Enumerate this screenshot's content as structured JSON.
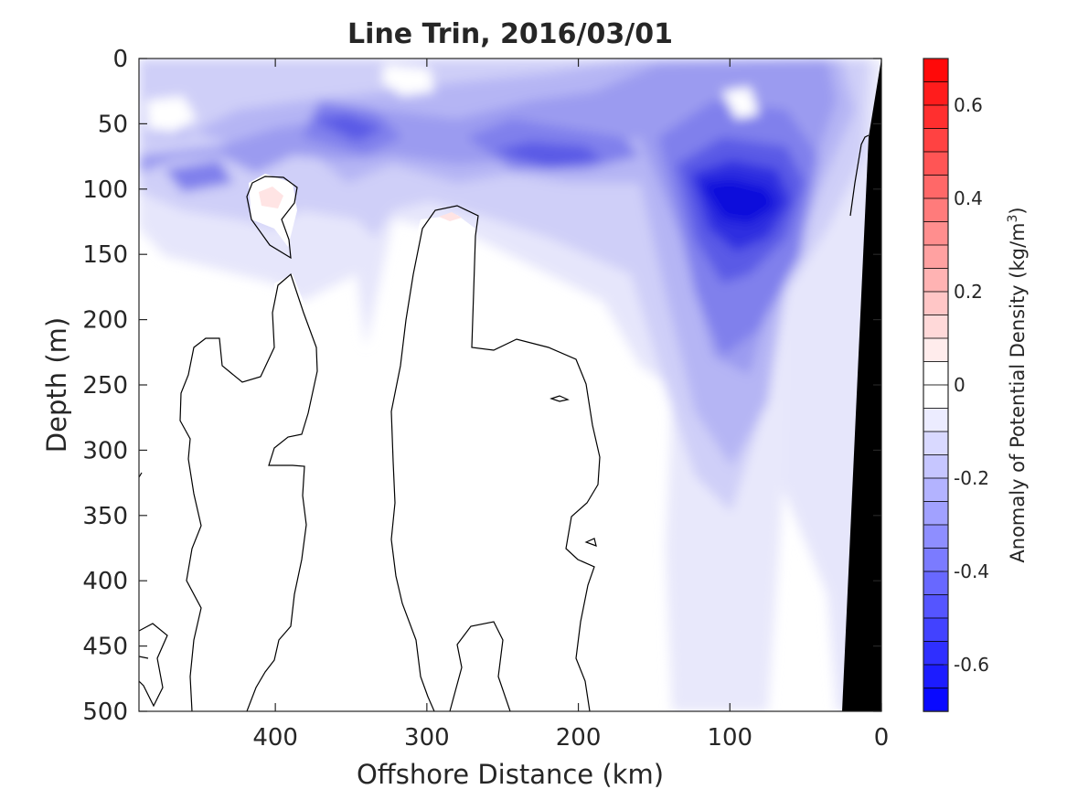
{
  "chart_data": {
    "type": "heatmap",
    "title": "Line Trin, 2016/03/01",
    "xlabel": "Offshore Distance (km)",
    "ylabel": "Depth (m)",
    "x_ticks": [
      400,
      300,
      200,
      100,
      0
    ],
    "y_ticks": [
      0,
      50,
      100,
      150,
      200,
      250,
      300,
      350,
      400,
      450,
      500
    ],
    "xlim": [
      490,
      0
    ],
    "ylim": [
      0,
      500
    ],
    "x_reversed": true,
    "y_reversed": true,
    "colorbar": {
      "label": "Anomaly of Potential Density (kg/m",
      "label_sup": "3",
      "label_close": ")",
      "ticks": [
        "0.6",
        "0.4",
        "0.2",
        "0",
        "-0.2",
        "-0.4",
        "-0.6"
      ],
      "tick_values": [
        0.6,
        0.4,
        0.2,
        0,
        -0.2,
        -0.4,
        -0.6
      ],
      "range": [
        -0.7,
        0.7
      ],
      "levels": 28,
      "colormap": "blue-white-red",
      "color_negative": "#0000ff",
      "color_zero": "#ffffff",
      "color_positive": "#ff0000"
    },
    "features": [
      {
        "name": "shallow negative layer",
        "depth_range": [
          0,
          150
        ],
        "anomaly_min": -0.3
      },
      {
        "name": "strong negative core",
        "x_range": [
          130,
          50
        ],
        "depth_range": [
          60,
          300
        ],
        "anomaly_min": -0.6
      },
      {
        "name": "coastal bathymetry",
        "color": "#000000"
      }
    ]
  }
}
